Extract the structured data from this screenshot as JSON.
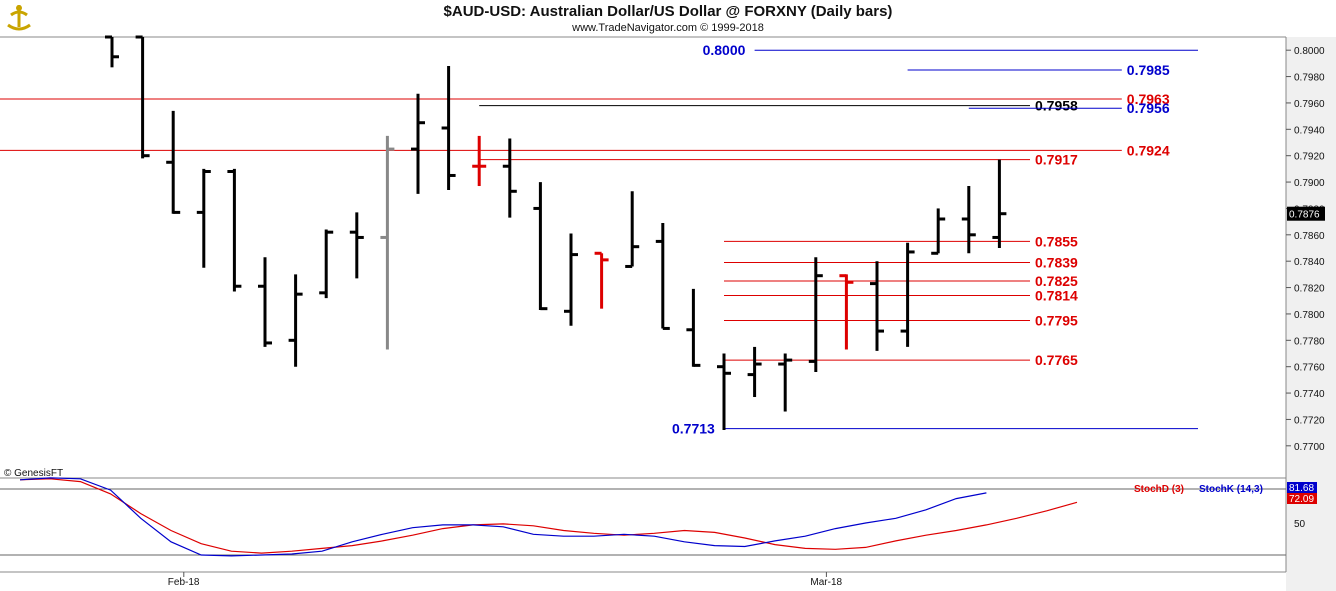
{
  "header": {
    "title": "$AUD-USD:  Australian Dollar/US Dollar @ FORXNY  (Daily bars)",
    "subtitle": "www.TradeNavigator.com © 1999-2018"
  },
  "copyright": "© GenesisFT",
  "colors": {
    "bar": "#000000",
    "bar_gray": "#888888",
    "bar_red": "#dd0000",
    "level_red": "#dd0000",
    "level_blue": "#0000cc",
    "level_black": "#000000",
    "stoch_d": "#dd0000",
    "stoch_k": "#0000cc",
    "axis_bg": "#f0f0f0"
  },
  "chart_data": [
    {
      "type": "ohlc",
      "title": "$AUD-USD:  Australian Dollar/US Dollar @ FORXNY  (Daily bars)",
      "ylim": [
        0.769,
        0.801
      ],
      "y_ticks": [
        "0.8000",
        "0.7980",
        "0.7960",
        "0.7940",
        "0.7920",
        "0.7900",
        "0.7880",
        "0.7860",
        "0.7840",
        "0.7820",
        "0.7800",
        "0.7780",
        "0.7760",
        "0.7740",
        "0.7720",
        "0.7700"
      ],
      "x_ticks": [
        "Feb-18",
        "Mar-18"
      ],
      "x_tick_bars": [
        3,
        24
      ],
      "last_price": "0.7876",
      "bars": [
        {
          "o": 0.803,
          "h": 0.804,
          "l": 0.7987,
          "c": 0.7995,
          "color": "black"
        },
        {
          "o": 0.803,
          "h": 0.804,
          "l": 0.7918,
          "c": 0.792,
          "color": "black"
        },
        {
          "o": 0.7915,
          "h": 0.7954,
          "l": 0.7876,
          "c": 0.7877,
          "color": "black"
        },
        {
          "o": 0.7877,
          "h": 0.791,
          "l": 0.7835,
          "c": 0.7908,
          "color": "black"
        },
        {
          "o": 0.7908,
          "h": 0.791,
          "l": 0.7817,
          "c": 0.7821,
          "color": "black"
        },
        {
          "o": 0.7821,
          "h": 0.7843,
          "l": 0.7775,
          "c": 0.7778,
          "color": "black"
        },
        {
          "o": 0.778,
          "h": 0.783,
          "l": 0.776,
          "c": 0.7815,
          "color": "black"
        },
        {
          "o": 0.7816,
          "h": 0.7864,
          "l": 0.7812,
          "c": 0.7862,
          "color": "black"
        },
        {
          "o": 0.7862,
          "h": 0.7877,
          "l": 0.7827,
          "c": 0.7858,
          "color": "black"
        },
        {
          "o": 0.7858,
          "h": 0.7935,
          "l": 0.7773,
          "c": 0.7925,
          "color": "gray"
        },
        {
          "o": 0.7925,
          "h": 0.7967,
          "l": 0.7891,
          "c": 0.7945,
          "color": "black"
        },
        {
          "o": 0.7941,
          "h": 0.7988,
          "l": 0.7894,
          "c": 0.7905,
          "color": "black"
        },
        {
          "o": 0.7912,
          "h": 0.7935,
          "l": 0.7897,
          "c": 0.7912,
          "color": "red"
        },
        {
          "o": 0.7912,
          "h": 0.7933,
          "l": 0.7873,
          "c": 0.7893,
          "color": "black"
        },
        {
          "o": 0.788,
          "h": 0.79,
          "l": 0.7803,
          "c": 0.7804,
          "color": "black"
        },
        {
          "o": 0.7802,
          "h": 0.7861,
          "l": 0.7791,
          "c": 0.7845,
          "color": "black"
        },
        {
          "o": 0.7846,
          "h": 0.7846,
          "l": 0.7804,
          "c": 0.7841,
          "color": "red"
        },
        {
          "o": 0.7836,
          "h": 0.7893,
          "l": 0.7836,
          "c": 0.7851,
          "color": "black"
        },
        {
          "o": 0.7855,
          "h": 0.7869,
          "l": 0.7789,
          "c": 0.7789,
          "color": "black"
        },
        {
          "o": 0.7788,
          "h": 0.7819,
          "l": 0.776,
          "c": 0.7761,
          "color": "black"
        },
        {
          "o": 0.776,
          "h": 0.777,
          "l": 0.7712,
          "c": 0.7755,
          "color": "black"
        },
        {
          "o": 0.7754,
          "h": 0.7775,
          "l": 0.7737,
          "c": 0.7762,
          "color": "black"
        },
        {
          "o": 0.7762,
          "h": 0.777,
          "l": 0.7726,
          "c": 0.7765,
          "color": "black"
        },
        {
          "o": 0.7764,
          "h": 0.7843,
          "l": 0.7756,
          "c": 0.7829,
          "color": "black"
        },
        {
          "o": 0.7829,
          "h": 0.783,
          "l": 0.7773,
          "c": 0.7824,
          "color": "red"
        },
        {
          "o": 0.7823,
          "h": 0.784,
          "l": 0.7772,
          "c": 0.7787,
          "color": "black"
        },
        {
          "o": 0.7787,
          "h": 0.7854,
          "l": 0.7775,
          "c": 0.7847,
          "color": "black"
        },
        {
          "o": 0.7846,
          "h": 0.788,
          "l": 0.7846,
          "c": 0.7872,
          "color": "black"
        },
        {
          "o": 0.7872,
          "h": 0.7897,
          "l": 0.7846,
          "c": 0.786,
          "color": "black"
        },
        {
          "o": 0.7858,
          "h": 0.7917,
          "l": 0.785,
          "c": 0.7876,
          "color": "black"
        }
      ],
      "levels": [
        {
          "value": 0.8,
          "label": "0.8000",
          "color": "blue",
          "from_bar": 21,
          "to_bar": 37,
          "label_side": "left"
        },
        {
          "value": 0.7985,
          "label": "0.7985",
          "color": "blue",
          "from_bar": 26,
          "to_bar": 33,
          "label_side": "right"
        },
        {
          "value": 0.7963,
          "label": "0.7963",
          "color": "red",
          "from_bar": -4,
          "to_bar": 33,
          "label_side": "right"
        },
        {
          "value": 0.7958,
          "label": "0.7958",
          "color": "black",
          "from_bar": 12,
          "to_bar": 30,
          "label_side": "right"
        },
        {
          "value": 0.7956,
          "label": "0.7956",
          "color": "blue",
          "from_bar": 28,
          "to_bar": 33,
          "label_side": "right"
        },
        {
          "value": 0.7924,
          "label": "0.7924",
          "color": "red",
          "from_bar": -4,
          "to_bar": 33,
          "label_side": "right"
        },
        {
          "value": 0.7917,
          "label": "0.7917",
          "color": "red",
          "from_bar": 12,
          "to_bar": 30,
          "label_side": "right"
        },
        {
          "value": 0.7855,
          "label": "0.7855",
          "color": "red",
          "from_bar": 20,
          "to_bar": 30,
          "label_side": "right"
        },
        {
          "value": 0.7839,
          "label": "0.7839",
          "color": "red",
          "from_bar": 20,
          "to_bar": 30,
          "label_side": "right"
        },
        {
          "value": 0.7825,
          "label": "0.7825",
          "color": "red",
          "from_bar": 20,
          "to_bar": 30,
          "label_side": "right"
        },
        {
          "value": 0.7814,
          "label": "0.7814",
          "color": "red",
          "from_bar": 20,
          "to_bar": 30,
          "label_side": "right"
        },
        {
          "value": 0.7795,
          "label": "0.7795",
          "color": "red",
          "from_bar": 20,
          "to_bar": 30,
          "label_side": "right"
        },
        {
          "value": 0.7765,
          "label": "0.7765",
          "color": "red",
          "from_bar": 20,
          "to_bar": 30,
          "label_side": "right"
        },
        {
          "value": 0.7713,
          "label": "0.7713",
          "color": "blue",
          "from_bar": 20,
          "to_bar": 36,
          "label_side": "left"
        }
      ]
    },
    {
      "type": "line",
      "title": "",
      "ylim": [
        0,
        100
      ],
      "y_ticks": [
        "50"
      ],
      "series": [
        {
          "name": "StochD (3)",
          "color": "red",
          "values": [
            96,
            97,
            94,
            81,
            60,
            42,
            28,
            20,
            18,
            20,
            23,
            26,
            31,
            37,
            44,
            48,
            49,
            47,
            42,
            39,
            37,
            39,
            42,
            40,
            34,
            27,
            23,
            22,
            24,
            31,
            37,
            42,
            48,
            55,
            63,
            72
          ]
        },
        {
          "name": "StochK (14,3)",
          "color": "blue",
          "values": [
            96,
            98,
            97,
            85,
            55,
            30,
            16,
            15,
            16,
            17,
            20,
            30,
            38,
            45,
            48,
            48,
            46,
            38,
            36,
            36,
            38,
            36,
            30,
            26,
            25,
            31,
            36,
            44,
            50,
            55,
            64,
            76,
            82
          ]
        }
      ],
      "last_values": [
        "81.68",
        "72.09"
      ]
    }
  ]
}
